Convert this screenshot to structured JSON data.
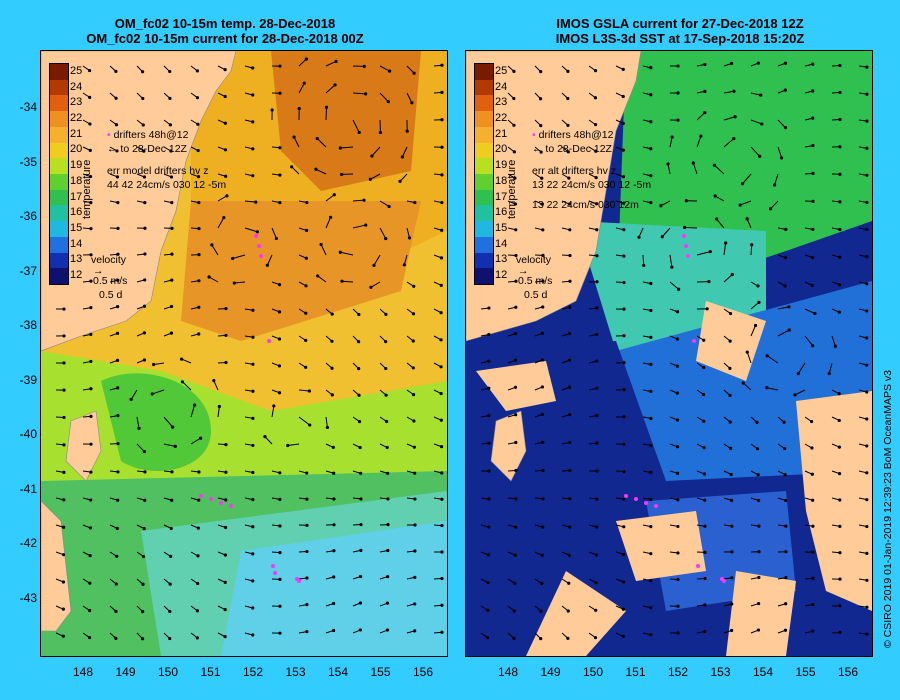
{
  "left_panel": {
    "title_line1": "OM_fc02 10-15m temp. 28-Dec-2018",
    "title_line2": "OM_fc02 10-15m current for 28-Dec-2018 00Z",
    "legend_drifters_1": "drifters 48h@12",
    "legend_drifters_2": "to 28-Dec 12Z",
    "colorbar_overlap_1": "21",
    "colorbar_overlap_2": "20",
    "temperature_label": "temperature",
    "err_line1": "err model drifters hv z",
    "err_line2": "44 42 24cm/s 030 12 -5m",
    "velocity_label": "velocity",
    "velocity_scale": "0.5 m/s",
    "velocity_days": "0.5 d"
  },
  "right_panel": {
    "title_line1": "IMOS GSLA current for 27-Dec-2018 12Z",
    "title_line2": "IMOS L3S-3d SST at 17-Sep-2018 15:20Z",
    "legend_drifters_1": "drifters 48h@12",
    "legend_drifters_2": "to 28-Dec 12Z",
    "colorbar_overlap_1": "21",
    "colorbar_overlap_2": "20",
    "temperature_label": "temperature",
    "err_line1": "err alt drifters hv z",
    "err_line2": "13 22 24cm/s 030 12 -5m",
    "err_line3": "13 22 24cm/s 030 12m",
    "velocity_label": "velocity",
    "velocity_scale": "0.5 m/s",
    "velocity_days": "0.5 d"
  },
  "colorbar_ticks": [
    "25",
    "24",
    "23",
    "22",
    "21",
    "20",
    "19",
    "18",
    "17",
    "16",
    "15",
    "14",
    "13",
    "12"
  ],
  "colorbar_colors": [
    "#7a1a00",
    "#b23a00",
    "#e06010",
    "#f09020",
    "#f5b030",
    "#eecc20",
    "#b8e020",
    "#60d030",
    "#30c050",
    "#20c0a0",
    "#20b8e0",
    "#2070e0",
    "#1030b0",
    "#101070"
  ],
  "y_ticks": [
    "-34",
    "-35",
    "-36",
    "-37",
    "-38",
    "-39",
    "-40",
    "-41",
    "-42",
    "-43"
  ],
  "x_ticks": [
    "148",
    "149",
    "150",
    "151",
    "152",
    "153",
    "154",
    "155",
    "156"
  ],
  "credit": "© CSIRO 2019  01-Jan-2019 12:39:23 BoM OceanMAPS v3",
  "colors": {
    "land": "#ffcc99",
    "background": "#33ccff",
    "drifter": "#ff33ff"
  }
}
